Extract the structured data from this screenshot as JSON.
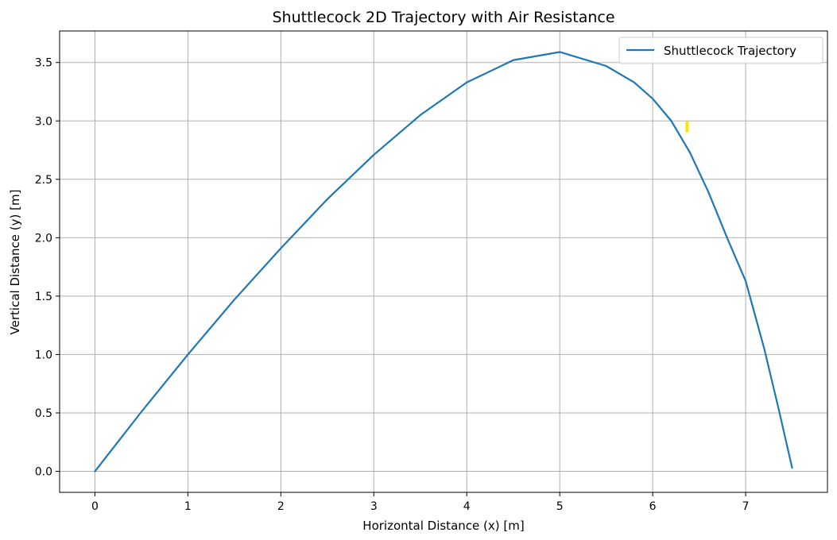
{
  "chart_data": {
    "type": "line",
    "title": "Shuttlecock 2D Trajectory with Air Resistance",
    "xlabel": "Horizontal Distance (x) [m]",
    "ylabel": "Vertical Distance (y) [m]",
    "xlim": [
      -0.38,
      7.88
    ],
    "ylim": [
      -0.18,
      3.77
    ],
    "xticks": [
      0,
      1,
      2,
      3,
      4,
      5,
      6,
      7
    ],
    "yticks": [
      0.0,
      0.5,
      1.0,
      1.5,
      2.0,
      2.5,
      3.0,
      3.5
    ],
    "xtick_labels": [
      "0",
      "1",
      "2",
      "3",
      "4",
      "5",
      "6",
      "7"
    ],
    "ytick_labels": [
      "0.0",
      "0.5",
      "1.0",
      "1.5",
      "2.0",
      "2.5",
      "3.0",
      "3.5"
    ],
    "grid": true,
    "legend_position": "top-right",
    "series": [
      {
        "name": "Shuttlecock Trajectory",
        "color": "#1f77b4",
        "x": [
          0,
          0.5,
          1.0,
          1.5,
          2.0,
          2.5,
          3.0,
          3.5,
          4.0,
          4.5,
          5.0,
          5.5,
          5.8,
          6.0,
          6.2,
          6.4,
          6.6,
          6.8,
          7.0,
          7.2,
          7.35,
          7.5
        ],
        "y": [
          0,
          0.51,
          1.0,
          1.47,
          1.91,
          2.33,
          2.71,
          3.05,
          3.33,
          3.52,
          3.59,
          3.47,
          3.33,
          3.19,
          3.0,
          2.73,
          2.39,
          2.0,
          1.63,
          1.05,
          0.55,
          0.03
        ]
      }
    ],
    "annotations": [
      {
        "type": "marker",
        "x": 6.37,
        "y": 2.95,
        "color": "#ffe000"
      }
    ]
  }
}
